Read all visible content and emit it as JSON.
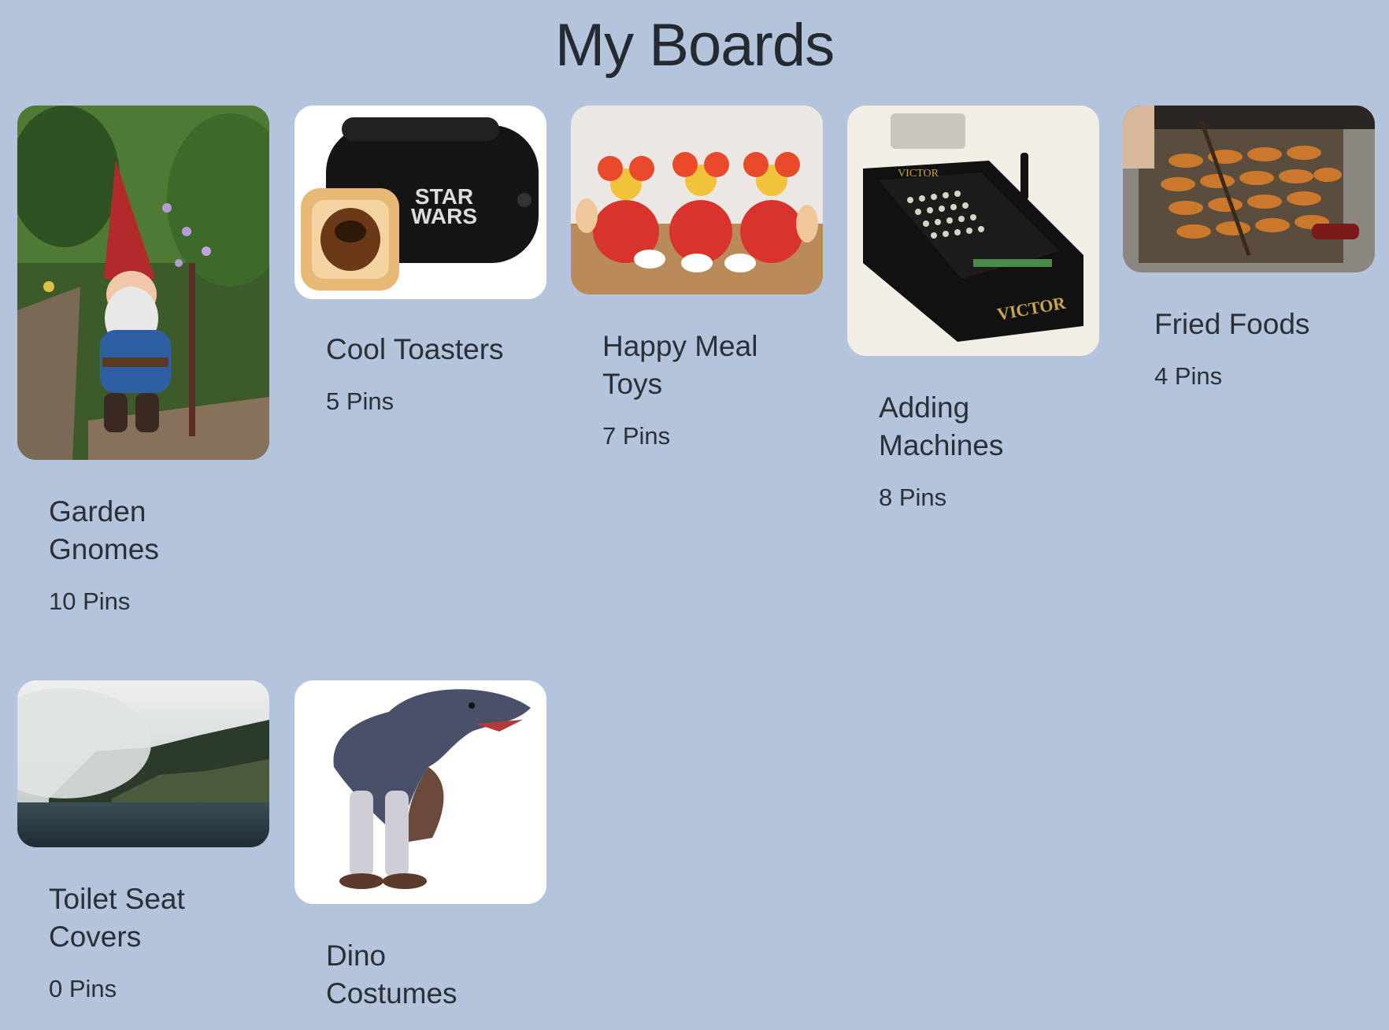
{
  "page": {
    "title": "My Boards"
  },
  "boards": [
    {
      "name": "Garden Gnomes",
      "count": "10 Pins",
      "image": "garden-gnome-photo"
    },
    {
      "name": "Cool Toasters",
      "count": "5 Pins",
      "image": "star-wars-toaster-photo"
    },
    {
      "name": "Happy Meal Toys",
      "count": "7 Pins",
      "image": "happy-meal-toys-photo"
    },
    {
      "name": "Adding Machines",
      "count": "8 Pins",
      "image": "victor-adding-machine-photo"
    },
    {
      "name": "Fried Foods",
      "count": "4 Pins",
      "image": "deep-fryer-photo"
    },
    {
      "name": "Toilet Seat Covers",
      "count": "0 Pins",
      "image": "misty-lake-photo"
    },
    {
      "name": "Dino Costumes",
      "count": "",
      "image": "dinosaur-costume-photo"
    }
  ],
  "colors": {
    "background": "#b4c4dd",
    "text": "#2b2f36"
  }
}
